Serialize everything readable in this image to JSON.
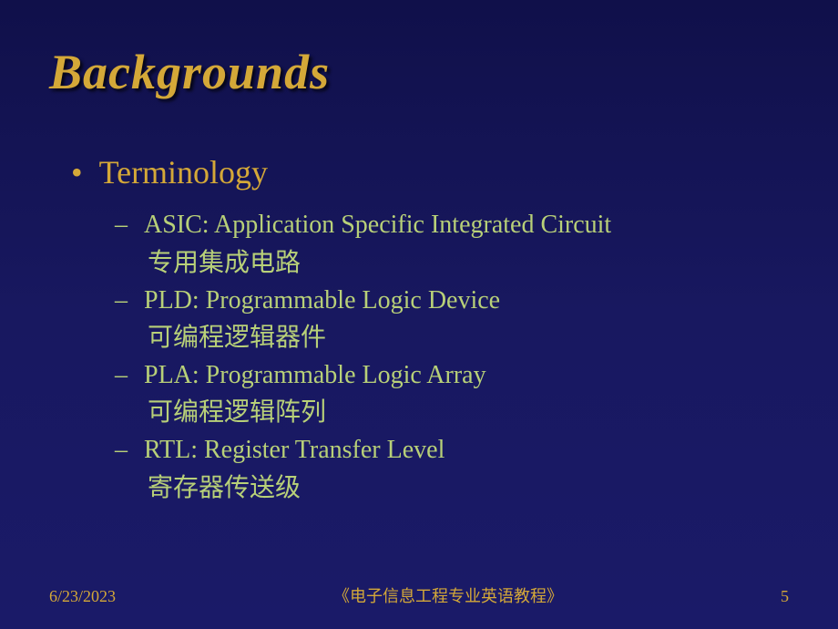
{
  "title": "Backgrounds",
  "level1": {
    "text": "Terminology"
  },
  "items": [
    {
      "term": "ASIC: Application Specific Integrated Circuit",
      "zh": "专用集成电路"
    },
    {
      "term": "PLD: Programmable Logic Device",
      "zh": "可编程逻辑器件"
    },
    {
      "term": "PLA: Programmable Logic Array",
      "zh": "可编程逻辑阵列"
    },
    {
      "term": "RTL: Register Transfer Level",
      "zh": "寄存器传送级"
    }
  ],
  "footer": {
    "date": "6/23/2023",
    "center": "《电子信息工程专业英语教程》",
    "page": "5"
  },
  "colors": {
    "title": "#d4a838",
    "body": "#b8d078",
    "bg_top": "#10104a",
    "bg_bottom": "#1a1a68"
  }
}
